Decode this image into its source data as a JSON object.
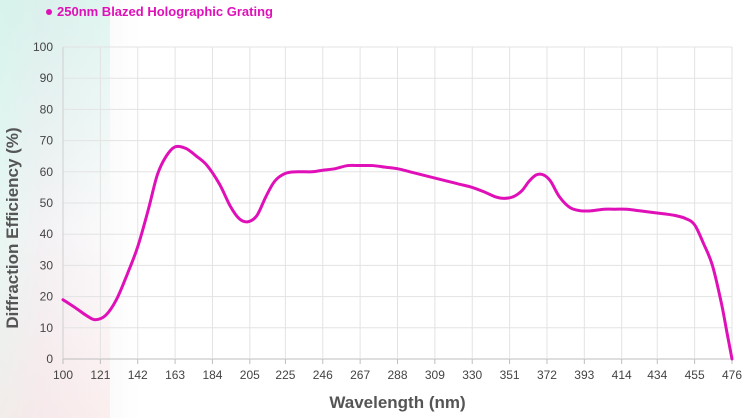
{
  "chart_data": {
    "type": "line",
    "title": "",
    "xlabel": "Wavelength (nm)",
    "ylabel": "Diffraction Efficiency (%)",
    "xlim": [
      100,
      476
    ],
    "ylim": [
      0,
      100
    ],
    "x_ticks": [
      100,
      121,
      142,
      163,
      184,
      205,
      225,
      246,
      267,
      288,
      309,
      330,
      351,
      372,
      393,
      414,
      434,
      455,
      476
    ],
    "y_ticks": [
      0,
      10,
      20,
      30,
      40,
      50,
      60,
      70,
      80,
      90,
      100
    ],
    "grid": true,
    "legend_position": "top-left",
    "series": [
      {
        "name": "250nm Blazed Holographic Grating",
        "color": "#e010b8",
        "x": [
          100,
          108,
          113,
          118,
          124,
          130,
          136,
          142,
          148,
          153,
          158,
          163,
          169,
          175,
          181,
          188,
          194,
          199,
          204,
          209,
          214,
          219,
          225,
          232,
          240,
          246,
          253,
          260,
          267,
          274,
          281,
          288,
          295,
          302,
          309,
          316,
          323,
          330,
          337,
          343,
          348,
          353,
          358,
          362,
          366,
          370,
          374,
          379,
          385,
          391,
          397,
          404,
          410,
          417,
          424,
          431,
          438,
          444,
          450,
          455,
          460,
          465,
          470,
          473,
          476
        ],
        "values": [
          19,
          16,
          14,
          12.6,
          14,
          19,
          27,
          36,
          48,
          59,
          65,
          68,
          67.5,
          65,
          62,
          56,
          49,
          45,
          44,
          46,
          52,
          57,
          59.5,
          60,
          60,
          60.5,
          61,
          62,
          62,
          62,
          61.5,
          61,
          60,
          59,
          58,
          57,
          56,
          55,
          53.5,
          52,
          51.5,
          52,
          54,
          57,
          59,
          59,
          57,
          52,
          48.5,
          47.5,
          47.5,
          48,
          48,
          48,
          47.5,
          47,
          46.5,
          46,
          45,
          43,
          37,
          30,
          18,
          9,
          0
        ]
      }
    ]
  }
}
